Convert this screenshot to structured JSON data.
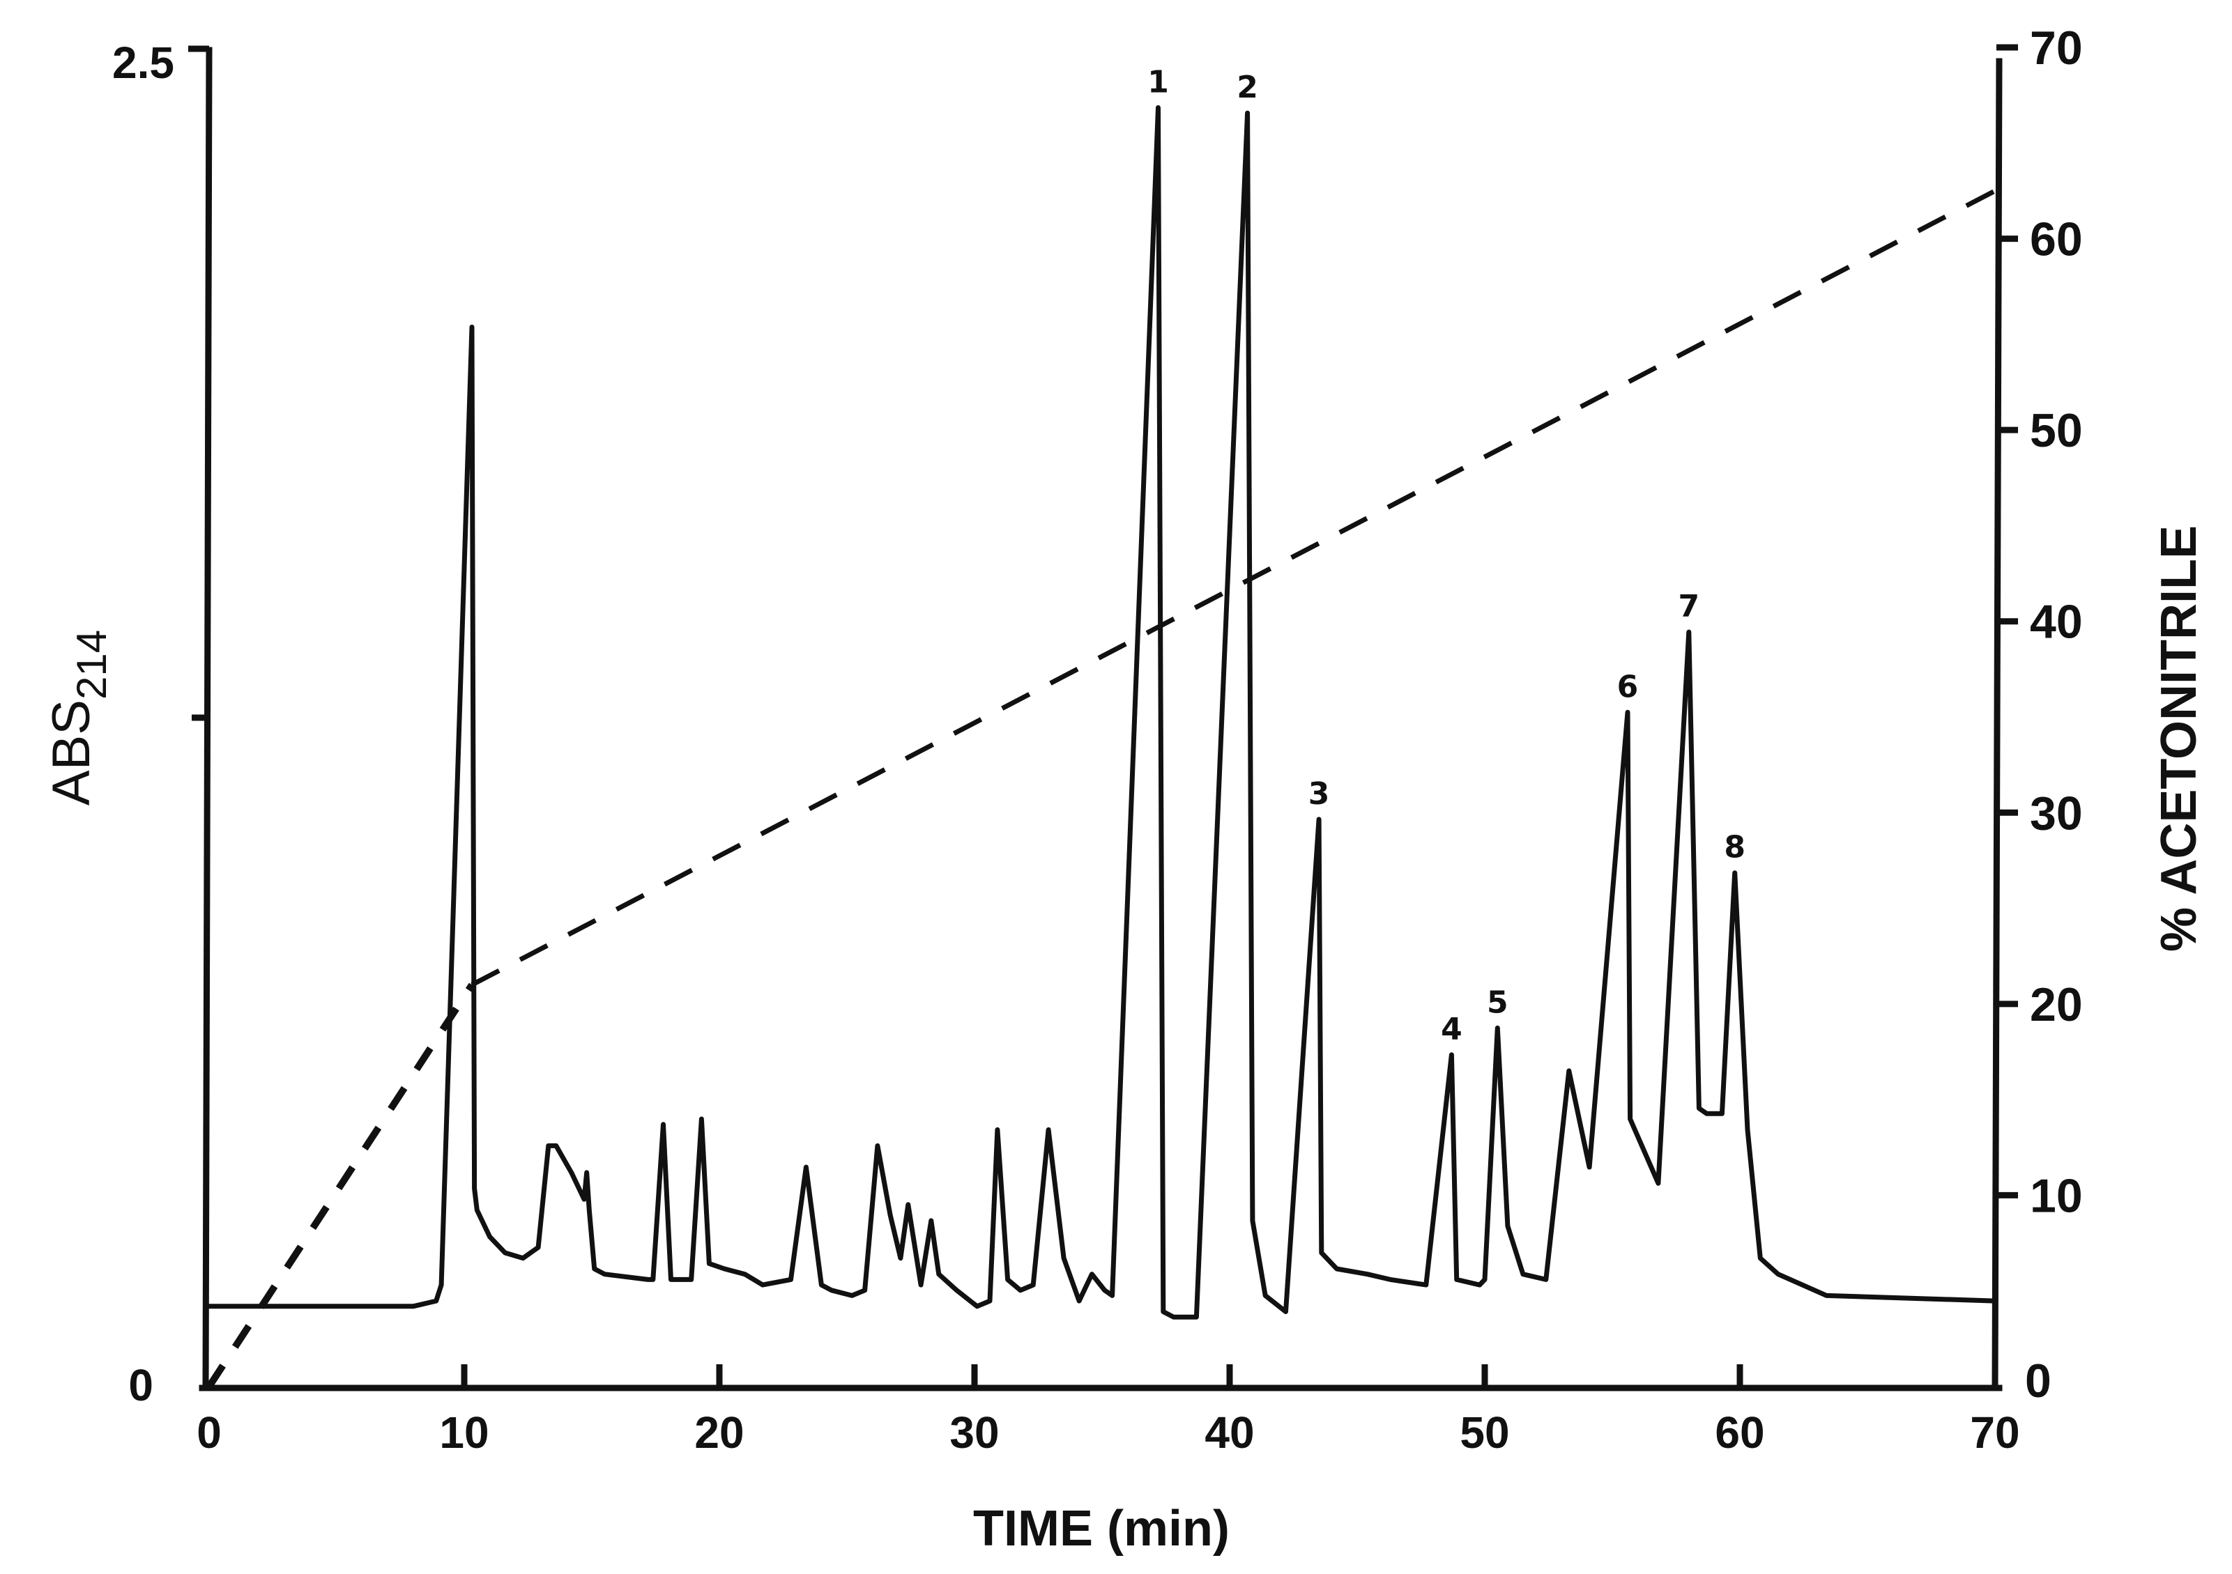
{
  "chart_data": {
    "type": "line",
    "title": "",
    "xlabel": "TIME (min)",
    "ylabel_left": "ABS214",
    "ylabel_left_main": "ABS",
    "ylabel_left_sub": "214",
    "ylabel_right": "% ACETONITRILE",
    "xlim": [
      0,
      70
    ],
    "ylim_left": [
      0,
      2.5
    ],
    "ylim_right": [
      0,
      70
    ],
    "grid": false,
    "legend": "none",
    "x_ticks": [
      0,
      10,
      20,
      30,
      40,
      50,
      60,
      70
    ],
    "x_tick_labels": [
      "0",
      "10",
      "20",
      "30",
      "40",
      "50",
      "60",
      "70"
    ],
    "left_ticks": [
      0,
      1.25,
      2.5
    ],
    "left_tick_labels": [
      "0",
      "",
      "2.5"
    ],
    "right_ticks": [
      0,
      10,
      20,
      30,
      40,
      50,
      60,
      70
    ],
    "right_tick_labels": [
      "0",
      "10",
      "20",
      "30",
      "40",
      "50",
      "60",
      "70"
    ],
    "series": [
      {
        "name": "ABS214",
        "axis": "left",
        "style": "solid",
        "x": [
          0,
          8.0,
          8.9,
          9.1,
          10.3,
          10.4,
          10.5,
          11.0,
          11.6,
          12.3,
          12.9,
          13.3,
          13.6,
          14.2,
          14.7,
          14.8,
          14.9,
          15.1,
          15.5,
          17.2,
          17.4,
          17.8,
          18.1,
          18.4,
          18.9,
          19.3,
          19.6,
          20.2,
          21.0,
          21.7,
          22.8,
          23.4,
          24.0,
          24.4,
          25.2,
          25.7,
          26.2,
          26.7,
          27.1,
          27.4,
          27.9,
          28.3,
          28.6,
          29.3,
          30.1,
          30.6,
          30.9,
          31.3,
          31.8,
          32.3,
          32.9,
          33.5,
          34.1,
          34.6,
          35.1,
          35.4,
          37.2,
          37.4,
          37.8,
          38.7,
          40.7,
          40.9,
          41.4,
          42.2,
          43.5,
          43.6,
          44.2,
          45.4,
          46.3,
          47.7,
          48.7,
          48.9,
          49.8,
          50.0,
          50.5,
          50.9,
          51.5,
          52.4,
          53.3,
          54.1,
          55.6,
          55.7,
          56.8,
          58.0,
          58.4,
          58.7,
          59.3,
          59.8,
          60.3,
          60.8,
          61.5,
          63.4,
          70.0
        ],
        "y": [
          0.15,
          0.15,
          0.16,
          0.19,
          1.98,
          0.37,
          0.33,
          0.28,
          0.25,
          0.24,
          0.26,
          0.45,
          0.45,
          0.4,
          0.35,
          0.4,
          0.33,
          0.22,
          0.21,
          0.2,
          0.2,
          0.49,
          0.2,
          0.2,
          0.2,
          0.5,
          0.23,
          0.22,
          0.21,
          0.19,
          0.2,
          0.41,
          0.19,
          0.18,
          0.17,
          0.18,
          0.45,
          0.32,
          0.24,
          0.34,
          0.19,
          0.31,
          0.21,
          0.18,
          0.15,
          0.16,
          0.48,
          0.2,
          0.18,
          0.19,
          0.48,
          0.24,
          0.16,
          0.21,
          0.18,
          0.17,
          2.39,
          0.14,
          0.13,
          0.13,
          2.38,
          0.31,
          0.17,
          0.14,
          1.06,
          0.25,
          0.22,
          0.21,
          0.2,
          0.19,
          0.62,
          0.2,
          0.19,
          0.2,
          0.67,
          0.3,
          0.21,
          0.2,
          0.59,
          0.41,
          1.26,
          0.5,
          0.38,
          1.41,
          0.52,
          0.51,
          0.51,
          0.96,
          0.48,
          0.24,
          0.21,
          0.17,
          0.16
        ]
      },
      {
        "name": "% Acetonitrile gradient",
        "axis": "right",
        "style": "dashed",
        "x": [
          0,
          10.3,
          70
        ],
        "y": [
          0,
          21,
          62.5
        ]
      }
    ],
    "peaks": [
      {
        "label": "1",
        "time": 37.2,
        "abs": 2.39
      },
      {
        "label": "2",
        "time": 40.7,
        "abs": 2.38
      },
      {
        "label": "3",
        "time": 43.5,
        "abs": 1.06
      },
      {
        "label": "4",
        "time": 48.7,
        "abs": 0.62
      },
      {
        "label": "5",
        "time": 50.5,
        "abs": 0.67
      },
      {
        "label": "6",
        "time": 55.6,
        "abs": 1.26
      },
      {
        "label": "7",
        "time": 58.0,
        "abs": 1.41
      },
      {
        "label": "8",
        "time": 59.8,
        "abs": 0.96
      }
    ]
  },
  "colors": {
    "ink": "#111111",
    "background": "#ffffff"
  }
}
